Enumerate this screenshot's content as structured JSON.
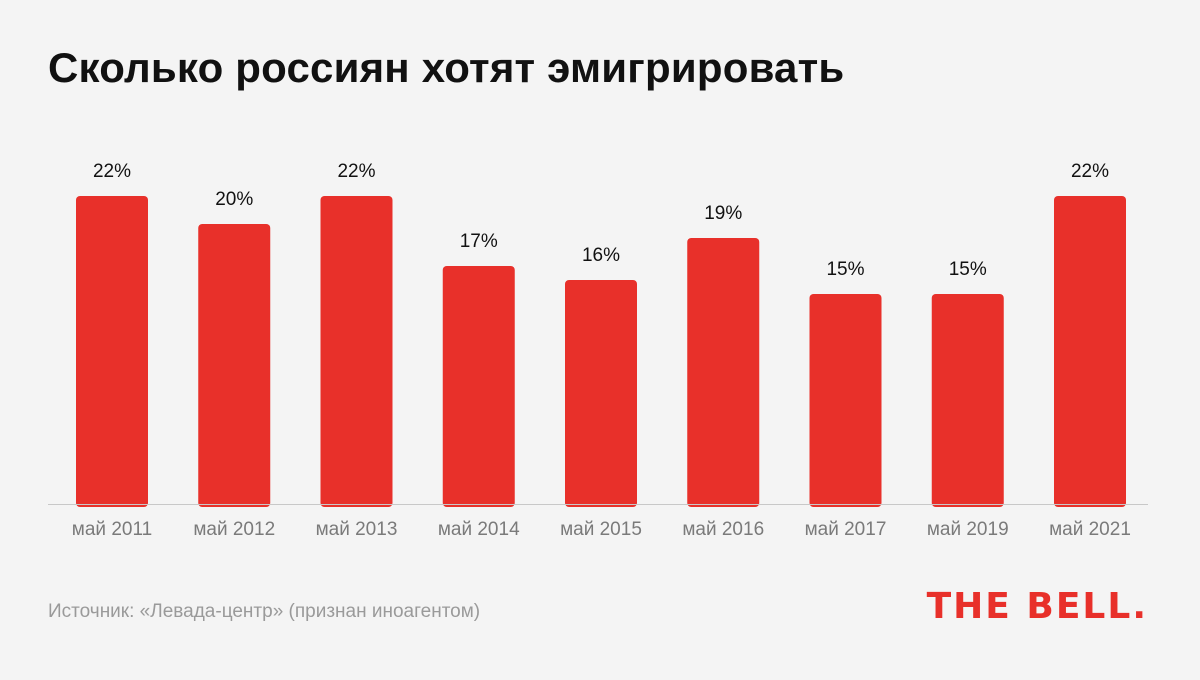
{
  "title": "Сколько россиян хотят эмигрировать",
  "source": "Источник: «Левада-центр» (признан иноагентом)",
  "logo": "THE BELL.",
  "colors": {
    "bar": "#e8302a",
    "axis": "#c8c8c8",
    "value_label": "#111111",
    "category_label": "#7a7a7a",
    "background": "#f4f4f4"
  },
  "chart_data": {
    "type": "bar",
    "categories": [
      "май 2011",
      "май 2012",
      "май 2013",
      "май 2014",
      "май 2015",
      "май 2016",
      "май 2017",
      "май 2019",
      "май 2021"
    ],
    "values": [
      22,
      20,
      22,
      17,
      16,
      19,
      15,
      15,
      22
    ],
    "value_suffix": "%",
    "title": "Сколько россиян хотят эмигрировать",
    "xlabel": "",
    "ylabel": "",
    "ylim": [
      0,
      22
    ],
    "grid": false,
    "legend": "none"
  }
}
